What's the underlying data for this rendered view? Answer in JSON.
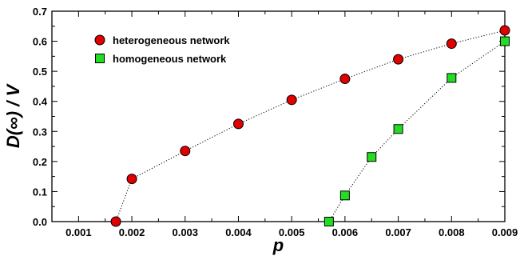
{
  "chart_data": {
    "type": "scatter",
    "xlabel": "p",
    "ylabel": "D(∞) / V",
    "xlim": [
      0.0005,
      0.009
    ],
    "ylim": [
      0.0,
      0.7
    ],
    "xticks": [
      0.001,
      0.002,
      0.003,
      0.004,
      0.005,
      0.006,
      0.007,
      0.008,
      0.009
    ],
    "xtick_labels": [
      "0.001",
      "0.002",
      "0.003",
      "0.004",
      "0.005",
      "0.006",
      "0.007",
      "0.008",
      "0.009"
    ],
    "yticks": [
      0.0,
      0.1,
      0.2,
      0.3,
      0.4,
      0.5,
      0.6,
      0.7
    ],
    "ytick_labels": [
      "0.0",
      "0.1",
      "0.2",
      "0.3",
      "0.4",
      "0.5",
      "0.6",
      "0.7"
    ],
    "grid": false,
    "legend_position": "top-left",
    "series": [
      {
        "name": "heterogeneous network",
        "marker": "circle",
        "color": "#e00000",
        "line_style": "dotted",
        "x": [
          0.0017,
          0.002,
          0.003,
          0.004,
          0.005,
          0.006,
          0.007,
          0.008,
          0.009
        ],
        "y": [
          0.0,
          0.142,
          0.235,
          0.325,
          0.405,
          0.475,
          0.54,
          0.592,
          0.636
        ]
      },
      {
        "name": "homogeneous network",
        "marker": "square",
        "color": "#22dd22",
        "line_style": "dotted",
        "x": [
          0.0057,
          0.006,
          0.0065,
          0.007,
          0.008,
          0.009
        ],
        "y": [
          0.0,
          0.087,
          0.215,
          0.308,
          0.478,
          0.6
        ]
      }
    ]
  }
}
